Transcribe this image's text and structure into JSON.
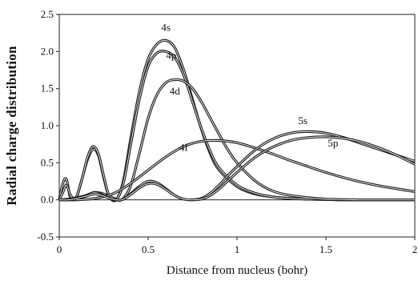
{
  "chart_data": {
    "type": "line",
    "title": "",
    "xlabel": "Distance from nucleus (bohr)",
    "ylabel": "Radial charge distribution",
    "xlim": [
      0,
      2
    ],
    "ylim": [
      -0.5,
      2.5
    ],
    "x_ticks": [
      "0",
      "0.5",
      "1",
      "1.5",
      "2"
    ],
    "y_ticks": [
      "-0.5",
      "0.0",
      "0.5",
      "1.0",
      "1.5",
      "2.0",
      "2.5"
    ],
    "grid": false,
    "legend": "none",
    "line_color": "#1a1a1a",
    "series": [
      {
        "name": "4s",
        "x": [
          0,
          0.02,
          0.04,
          0.06,
          0.08,
          0.1,
          0.13,
          0.16,
          0.19,
          0.22,
          0.25,
          0.28,
          0.32,
          0.36,
          0.4,
          0.45,
          0.5,
          0.55,
          0.6,
          0.65,
          0.7,
          0.75,
          0.8,
          0.85,
          0.9,
          1.0,
          1.1,
          1.2,
          1.3,
          1.4,
          1.5,
          1.6,
          1.7,
          1.8,
          1.9,
          2.0
        ],
        "y": [
          0,
          0.22,
          0.28,
          0.05,
          0.0,
          0.05,
          0.3,
          0.55,
          0.68,
          0.6,
          0.3,
          0.05,
          0.0,
          0.25,
          0.8,
          1.45,
          1.9,
          2.1,
          2.15,
          2.05,
          1.75,
          1.35,
          0.95,
          0.62,
          0.4,
          0.18,
          0.08,
          0.04,
          0.02,
          0.01,
          0.005,
          0.0,
          0.0,
          0.0,
          0.0,
          0.0
        ]
      },
      {
        "name": "4p",
        "x": [
          0,
          0.02,
          0.04,
          0.06,
          0.08,
          0.1,
          0.13,
          0.16,
          0.19,
          0.22,
          0.25,
          0.28,
          0.32,
          0.36,
          0.4,
          0.45,
          0.5,
          0.55,
          0.6,
          0.65,
          0.7,
          0.75,
          0.8,
          0.85,
          0.9,
          1.0,
          1.1,
          1.2,
          1.3,
          1.4,
          1.5,
          1.6,
          1.7,
          1.8,
          1.9,
          2.0
        ],
        "y": [
          0,
          0.1,
          0.2,
          0.08,
          0.02,
          0.06,
          0.3,
          0.58,
          0.72,
          0.62,
          0.32,
          0.06,
          0.0,
          0.22,
          0.72,
          1.35,
          1.8,
          1.98,
          2.0,
          1.92,
          1.68,
          1.32,
          0.96,
          0.65,
          0.43,
          0.2,
          0.09,
          0.04,
          0.02,
          0.01,
          0.005,
          0.0,
          0.0,
          0.0,
          0.0,
          0.0
        ]
      },
      {
        "name": "4d",
        "x": [
          0,
          0.05,
          0.1,
          0.15,
          0.2,
          0.25,
          0.3,
          0.35,
          0.4,
          0.45,
          0.5,
          0.55,
          0.6,
          0.65,
          0.7,
          0.75,
          0.8,
          0.85,
          0.9,
          0.95,
          1.0,
          1.1,
          1.2,
          1.3,
          1.4,
          1.5,
          1.6,
          1.7,
          1.8,
          1.9,
          2.0
        ],
        "y": [
          0,
          0.0,
          0.02,
          0.05,
          0.1,
          0.08,
          0.03,
          0.0,
          0.18,
          0.62,
          1.1,
          1.42,
          1.58,
          1.62,
          1.6,
          1.5,
          1.32,
          1.1,
          0.88,
          0.67,
          0.5,
          0.26,
          0.12,
          0.06,
          0.03,
          0.01,
          0.005,
          0.0,
          0.0,
          0.0,
          0.0
        ]
      },
      {
        "name": "4f",
        "x": [
          0,
          0.1,
          0.2,
          0.3,
          0.4,
          0.5,
          0.6,
          0.7,
          0.8,
          0.9,
          1.0,
          1.1,
          1.2,
          1.3,
          1.4,
          1.5,
          1.6,
          1.7,
          1.8,
          1.9,
          2.0
        ],
        "y": [
          0,
          0.0,
          0.02,
          0.08,
          0.22,
          0.4,
          0.58,
          0.72,
          0.79,
          0.8,
          0.77,
          0.7,
          0.62,
          0.53,
          0.45,
          0.37,
          0.3,
          0.24,
          0.19,
          0.15,
          0.11
        ]
      },
      {
        "name": "5s",
        "x": [
          0,
          0.05,
          0.1,
          0.15,
          0.2,
          0.25,
          0.3,
          0.35,
          0.4,
          0.45,
          0.5,
          0.55,
          0.6,
          0.65,
          0.7,
          0.75,
          0.8,
          0.85,
          0.9,
          0.95,
          1.0,
          1.1,
          1.2,
          1.3,
          1.4,
          1.5,
          1.6,
          1.7,
          1.8,
          1.9,
          2.0
        ],
        "y": [
          0,
          0.01,
          0.03,
          0.06,
          0.1,
          0.06,
          0.01,
          0.0,
          0.08,
          0.18,
          0.25,
          0.23,
          0.15,
          0.06,
          0.01,
          0.0,
          0.02,
          0.09,
          0.2,
          0.33,
          0.45,
          0.67,
          0.82,
          0.9,
          0.92,
          0.9,
          0.84,
          0.76,
          0.68,
          0.6,
          0.52
        ]
      },
      {
        "name": "5p",
        "x": [
          0,
          0.05,
          0.1,
          0.15,
          0.2,
          0.25,
          0.3,
          0.35,
          0.4,
          0.45,
          0.5,
          0.55,
          0.6,
          0.65,
          0.7,
          0.75,
          0.8,
          0.85,
          0.9,
          0.95,
          1.0,
          1.1,
          1.2,
          1.3,
          1.4,
          1.5,
          1.6,
          1.7,
          1.8,
          1.9,
          2.0
        ],
        "y": [
          0,
          0.0,
          0.02,
          0.05,
          0.08,
          0.05,
          0.01,
          0.0,
          0.07,
          0.16,
          0.22,
          0.21,
          0.14,
          0.06,
          0.01,
          0.0,
          0.01,
          0.06,
          0.15,
          0.26,
          0.37,
          0.57,
          0.71,
          0.8,
          0.84,
          0.85,
          0.83,
          0.78,
          0.7,
          0.6,
          0.48
        ]
      }
    ],
    "annotations": [
      {
        "text": "4s",
        "x": 0.6,
        "y": 2.28
      },
      {
        "text": "4p",
        "x": 0.63,
        "y": 1.9
      },
      {
        "text": "4d",
        "x": 0.65,
        "y": 1.42
      },
      {
        "text": "4f",
        "x": 0.7,
        "y": 0.66
      },
      {
        "text": "5s",
        "x": 1.37,
        "y": 1.02
      },
      {
        "text": "5p",
        "x": 1.54,
        "y": 0.72
      }
    ]
  }
}
